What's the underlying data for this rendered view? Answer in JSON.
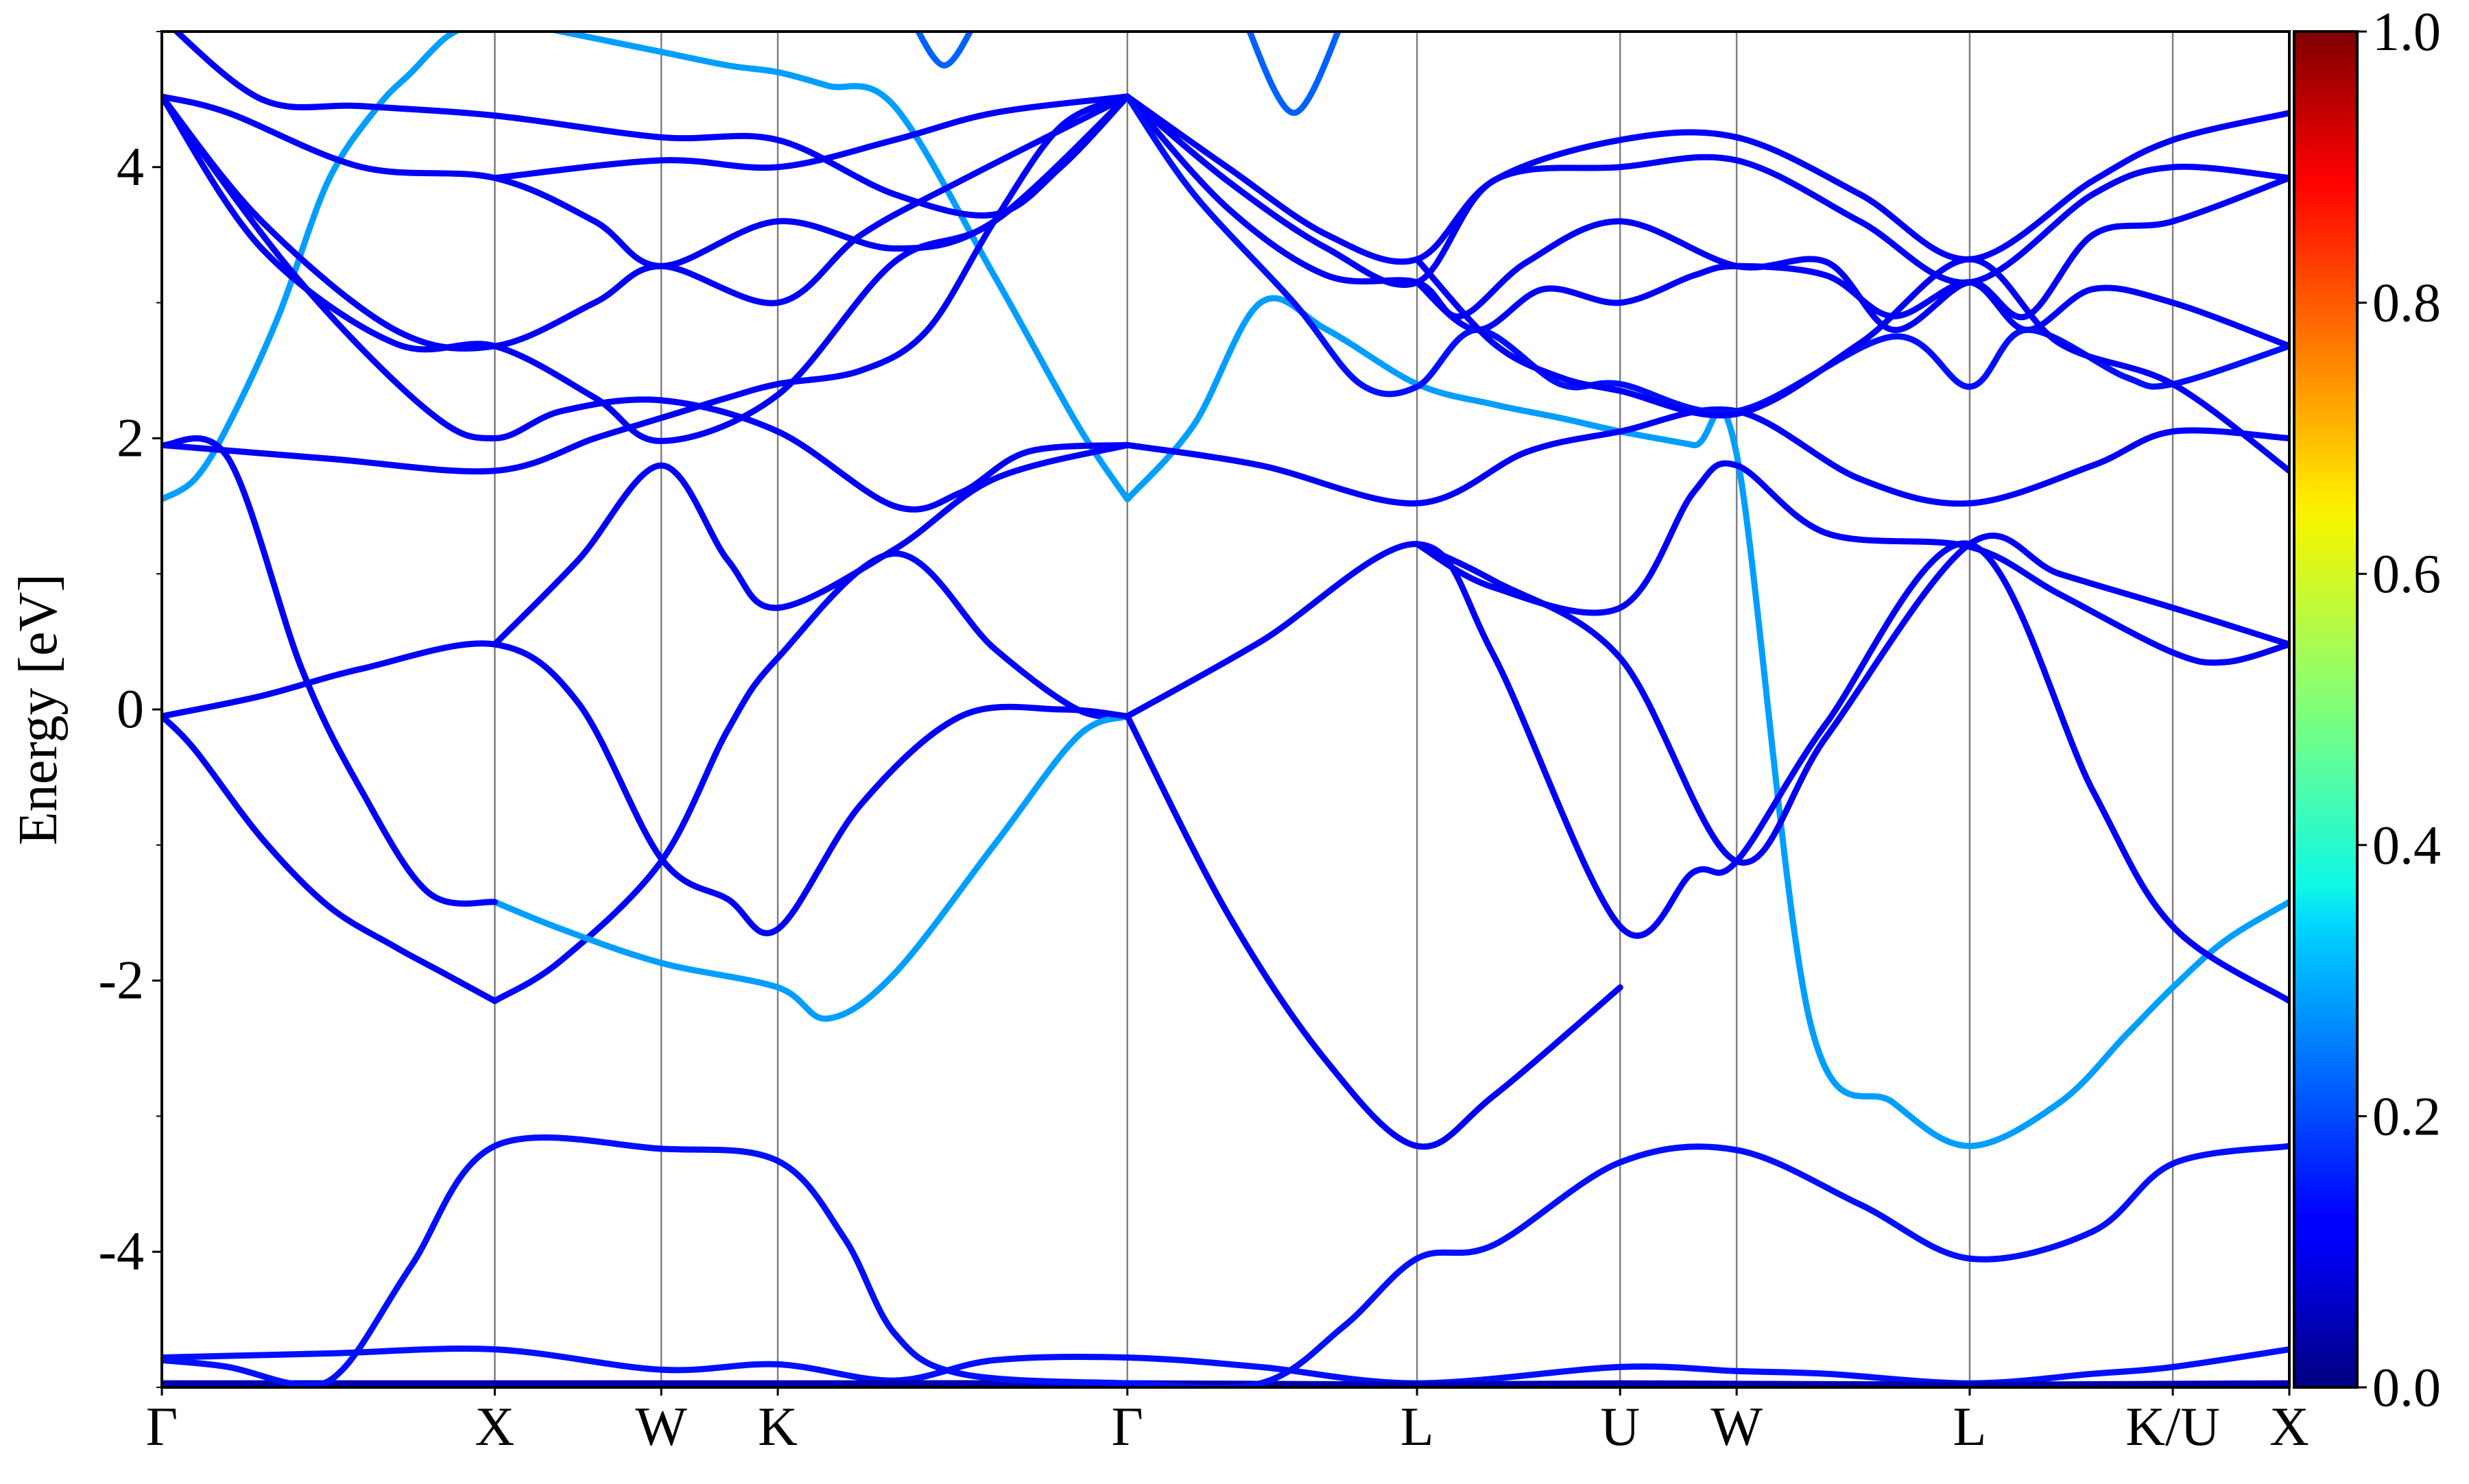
{
  "chart_data": {
    "type": "line",
    "title": "",
    "xlabel": "",
    "ylabel": "Energy [eV]",
    "ylim": [
      -5,
      5
    ],
    "yticks": [
      -4,
      -2,
      0,
      2,
      4
    ],
    "ytick_labels": [
      "-4",
      "-2",
      "0",
      "2",
      "4"
    ],
    "grid": "vertical lines at high-symmetry points",
    "k_points": [
      {
        "label": "Γ",
        "x": 0.0
      },
      {
        "label": "X",
        "x": 1.0
      },
      {
        "label": "W",
        "x": 1.5
      },
      {
        "label": "K",
        "x": 1.85
      },
      {
        "label": "Γ",
        "x": 2.9
      },
      {
        "label": "L",
        "x": 3.77
      },
      {
        "label": "U",
        "x": 4.38
      },
      {
        "label": "W",
        "x": 4.73
      },
      {
        "label": "L",
        "x": 5.43
      },
      {
        "label": "K/U",
        "x": 6.04
      },
      {
        "label": "X",
        "x": 6.39
      }
    ],
    "colorbar": {
      "colormap": "jet",
      "range": [
        0.0,
        1.0
      ],
      "ticks": [
        "0.0",
        "0.2",
        "0.4",
        "0.6",
        "0.8",
        "1.0"
      ]
    },
    "series": [
      {
        "weight": 0.14,
        "x": [
          0,
          0.5,
          1.0,
          1.5,
          1.85,
          2.2,
          2.5,
          2.9,
          3.3,
          3.77,
          4.38,
          4.73,
          5.0,
          5.43,
          5.8,
          6.04,
          6.39
        ],
        "y": [
          -4.78,
          -4.75,
          -4.72,
          -4.87,
          -4.83,
          -4.95,
          -4.8,
          -4.78,
          -4.85,
          -4.97,
          -4.85,
          -4.88,
          -4.9,
          -4.97,
          -4.9,
          -4.85,
          -4.72
        ]
      },
      {
        "weight": 0.05,
        "x": [
          0,
          1.0,
          2.0,
          2.9,
          3.77,
          4.38,
          5.43,
          6.39
        ],
        "y": [
          -4.97,
          -4.97,
          -4.97,
          -4.97,
          -4.98,
          -4.97,
          -4.98,
          -4.97
        ]
      },
      {
        "weight": 0.14,
        "x": [
          0,
          0.2,
          0.42,
          0.55,
          0.75,
          1.0,
          1.5,
          1.85,
          2.05,
          2.2,
          2.4,
          2.9,
          3.3,
          3.55,
          3.77,
          4.0,
          4.38,
          4.73,
          5.1,
          5.43,
          5.8,
          6.04,
          6.39
        ],
        "y": [
          -4.8,
          -4.85,
          -4.98,
          -4.85,
          -4.1,
          -3.22,
          -3.24,
          -3.33,
          -3.9,
          -4.6,
          -4.9,
          -4.97,
          -4.97,
          -4.55,
          -4.05,
          -3.95,
          -3.34,
          -3.25,
          -3.65,
          -4.05,
          -3.85,
          -3.35,
          -3.22
        ]
      },
      {
        "weight": 0.28,
        "x": [
          0,
          0.1,
          0.2,
          0.35,
          0.5,
          0.65,
          0.75,
          0.85,
          0.93,
          1.0,
          1.1,
          1.3,
          1.5,
          1.7,
          1.85,
          2.0,
          2.2,
          2.5,
          2.75,
          2.9
        ],
        "y": [
          1.55,
          1.7,
          2.1,
          2.9,
          3.9,
          4.45,
          4.7,
          4.95,
          5.05,
          5.1,
          5.05,
          4.95,
          4.85,
          4.75,
          4.7,
          4.6,
          4.45,
          3.2,
          2.1,
          1.55
        ]
      },
      {
        "weight": 0.28,
        "x": [
          2.9,
          3.1,
          3.3,
          3.5,
          3.77,
          4.0,
          4.2,
          4.38,
          4.6,
          4.73,
          4.95,
          5.2,
          5.43,
          5.7,
          5.9,
          6.04,
          6.2,
          6.39
        ],
        "y": [
          1.55,
          2.1,
          3.0,
          2.8,
          2.4,
          2.25,
          2.15,
          2.05,
          1.95,
          1.88,
          -2.3,
          -2.9,
          -3.22,
          -2.9,
          -2.4,
          -2.05,
          -1.7,
          -1.42
        ]
      },
      {
        "weight": 0.12,
        "x": [
          0,
          0.1,
          0.3,
          0.5,
          0.7,
          0.85,
          1.0
        ],
        "y": [
          -0.05,
          -0.3,
          -0.95,
          -1.45,
          -1.75,
          -1.95,
          -2.15
        ]
      },
      {
        "weight": 0.13,
        "x": [
          1.0,
          1.2,
          1.5,
          1.7,
          1.85,
          2.2,
          2.5,
          2.75,
          2.9
        ],
        "y": [
          -2.15,
          -1.85,
          -1.12,
          -0.15,
          0.38,
          1.15,
          0.45,
          0.0,
          -0.05
        ]
      },
      {
        "weight": 0.28,
        "x": [
          1.0,
          1.2,
          1.5,
          1.85,
          2.0,
          2.2,
          2.5,
          2.75,
          2.9
        ],
        "y": [
          -1.42,
          -1.62,
          -1.87,
          -2.05,
          -2.28,
          -1.95,
          -1.0,
          -0.2,
          -0.05
        ]
      },
      {
        "weight": 0.12,
        "x": [
          0,
          0.3,
          0.6,
          1.0,
          1.25,
          1.5,
          1.7,
          1.85,
          2.1,
          2.4,
          2.7,
          2.9
        ],
        "y": [
          -0.05,
          0.1,
          0.3,
          0.48,
          0.05,
          -1.1,
          -1.4,
          -1.62,
          -0.7,
          -0.05,
          0.0,
          -0.05
        ]
      },
      {
        "weight": 0.12,
        "x": [
          0,
          0.2,
          0.42,
          0.6,
          0.8,
          1.0
        ],
        "y": [
          1.95,
          1.85,
          0.3,
          -0.6,
          -1.35,
          -1.42
        ]
      },
      {
        "weight": 0.12,
        "x": [
          1.0,
          1.25,
          1.5,
          1.7,
          1.85,
          2.2,
          2.5,
          2.9
        ],
        "y": [
          0.48,
          1.1,
          1.8,
          1.1,
          0.75,
          1.18,
          1.7,
          1.95
        ]
      },
      {
        "weight": 0.12,
        "x": [
          2.9,
          3.3,
          3.77,
          4.0,
          4.38,
          4.6,
          4.73,
          5.0,
          5.43,
          5.8,
          6.04,
          6.39
        ],
        "y": [
          -0.05,
          0.5,
          1.22,
          0.4,
          -1.6,
          -1.2,
          -1.12,
          -0.1,
          1.22,
          -0.6,
          -1.6,
          -2.15
        ]
      },
      {
        "weight": 0.12,
        "x": [
          2.9,
          3.2,
          3.5,
          3.77,
          4.0,
          4.38
        ],
        "y": [
          -0.05,
          -1.5,
          -2.6,
          -3.22,
          -2.85,
          -2.05
        ]
      },
      {
        "weight": 0.12,
        "x": [
          3.77,
          4.0,
          4.38,
          4.6,
          4.73,
          5.0,
          5.43,
          5.7,
          6.04,
          6.2,
          6.39
        ],
        "y": [
          1.22,
          0.9,
          0.75,
          1.6,
          1.8,
          1.3,
          1.2,
          0.85,
          0.42,
          0.35,
          0.48
        ]
      },
      {
        "weight": 0.12,
        "x": [
          3.77,
          4.0,
          4.38,
          4.73,
          5.0,
          5.43,
          5.7,
          6.04,
          6.39
        ],
        "y": [
          1.22,
          0.95,
          0.38,
          -1.12,
          -0.2,
          1.22,
          1.0,
          0.75,
          0.48
        ]
      },
      {
        "weight": 0.12,
        "x": [
          2.9,
          3.3,
          3.77,
          4.1,
          4.38,
          4.73,
          5.1,
          5.43,
          5.8,
          6.04,
          6.39
        ],
        "y": [
          1.95,
          1.8,
          1.52,
          1.9,
          2.05,
          2.2,
          1.7,
          1.52,
          1.8,
          2.05,
          2.0
        ]
      },
      {
        "weight": 0.12,
        "x": [
          0,
          0.5,
          1.0,
          1.3,
          1.5,
          1.7,
          1.85,
          2.1,
          2.3,
          2.5,
          2.7,
          2.9
        ],
        "y": [
          1.95,
          1.85,
          1.76,
          2.0,
          2.15,
          2.3,
          2.4,
          2.5,
          2.8,
          3.6,
          4.3,
          4.52
        ]
      },
      {
        "weight": 0.12,
        "x": [
          0,
          0.4,
          0.8,
          1.0,
          1.2,
          1.5,
          1.85,
          2.2,
          2.4,
          2.6,
          2.9
        ],
        "y": [
          4.52,
          3.2,
          2.2,
          2.0,
          2.2,
          2.28,
          2.05,
          1.5,
          1.6,
          1.9,
          1.95
        ]
      },
      {
        "weight": 0.12,
        "x": [
          0,
          0.3,
          0.7,
          1.0,
          1.3,
          1.5,
          1.85,
          2.2,
          2.5,
          2.9
        ],
        "y": [
          4.52,
          3.4,
          2.7,
          2.68,
          2.3,
          1.98,
          2.32,
          3.3,
          3.6,
          4.52
        ]
      },
      {
        "weight": 0.12,
        "x": [
          0,
          0.3,
          0.7,
          1.0,
          1.3,
          1.5,
          1.85,
          2.1,
          2.4,
          2.9
        ],
        "y": [
          4.52,
          3.6,
          2.8,
          2.68,
          3.0,
          3.27,
          3.0,
          3.5,
          3.9,
          4.52
        ]
      },
      {
        "weight": 0.12,
        "x": [
          0,
          0.2,
          0.6,
          1.0,
          1.3,
          1.5,
          1.85,
          2.2,
          2.5,
          2.9
        ],
        "y": [
          4.52,
          4.4,
          4.0,
          3.92,
          3.6,
          3.27,
          3.6,
          3.4,
          3.6,
          4.52
        ]
      },
      {
        "weight": 0.12,
        "x": [
          0,
          0.3,
          0.6,
          1.0,
          1.5,
          1.85,
          2.2,
          2.5,
          2.7,
          2.9
        ],
        "y": [
          5.1,
          4.5,
          4.45,
          4.38,
          4.22,
          4.2,
          3.8,
          3.65,
          4.0,
          4.52
        ]
      },
      {
        "weight": 0.12,
        "x": [
          1.0,
          1.5,
          1.85,
          2.2,
          2.5,
          2.9
        ],
        "y": [
          3.92,
          4.05,
          4.0,
          4.2,
          4.4,
          4.52
        ]
      },
      {
        "weight": 0.12,
        "x": [
          2.9,
          3.2,
          3.5,
          3.77,
          4.0,
          4.38,
          4.73,
          5.1,
          5.43,
          5.8,
          6.04,
          6.39
        ],
        "y": [
          4.52,
          4.0,
          3.5,
          3.32,
          3.9,
          4.2,
          4.22,
          3.8,
          3.32,
          3.9,
          4.2,
          4.4
        ]
      },
      {
        "weight": 0.12,
        "x": [
          2.9,
          3.2,
          3.5,
          3.77,
          4.0,
          4.38,
          4.73,
          5.1,
          5.43,
          5.8,
          6.04,
          6.39
        ],
        "y": [
          4.52,
          3.9,
          3.4,
          3.15,
          3.9,
          4.0,
          4.05,
          3.6,
          3.15,
          3.8,
          4.0,
          3.92
        ]
      },
      {
        "weight": 0.12,
        "x": [
          2.9,
          3.2,
          3.5,
          3.77,
          3.9,
          4.1,
          4.38,
          4.73,
          5.0,
          5.2,
          5.43,
          5.6,
          5.8,
          6.04,
          6.39
        ],
        "y": [
          4.52,
          3.7,
          3.2,
          3.15,
          2.9,
          3.3,
          3.6,
          3.27,
          3.3,
          2.8,
          3.15,
          2.9,
          3.5,
          3.6,
          3.92
        ]
      },
      {
        "weight": 0.12,
        "x": [
          3.77,
          3.95,
          4.15,
          4.38,
          4.6,
          4.73,
          5.0,
          5.2,
          5.43,
          5.6,
          5.8,
          6.04,
          6.39
        ],
        "y": [
          3.15,
          2.8,
          3.1,
          3.0,
          3.2,
          3.27,
          3.2,
          2.9,
          3.15,
          2.8,
          3.1,
          3.0,
          2.68
        ]
      },
      {
        "weight": 0.14,
        "x": [
          2.9,
          3.1,
          3.4,
          3.6,
          3.77,
          3.95,
          4.2,
          4.38,
          4.73,
          5.2,
          5.43,
          5.6,
          5.9,
          6.04,
          6.39
        ],
        "y": [
          4.52,
          3.8,
          3.0,
          2.4,
          2.38,
          2.8,
          2.4,
          2.4,
          2.2,
          2.75,
          2.38,
          2.8,
          2.45,
          2.4,
          2.68
        ]
      },
      {
        "weight": 0.12,
        "x": [
          3.77,
          4.0,
          4.2,
          4.38,
          4.73,
          5.1,
          5.43,
          5.7,
          6.04,
          6.39
        ],
        "y": [
          3.32,
          2.7,
          2.45,
          2.35,
          2.18,
          2.7,
          3.32,
          2.7,
          2.4,
          1.76
        ]
      },
      {
        "weight": 0.22,
        "x": [
          2.25,
          2.35,
          2.45
        ],
        "y": [
          5.1,
          4.75,
          5.1
        ]
      },
      {
        "weight": 0.22,
        "x": [
          3.25,
          3.4,
          3.55
        ],
        "y": [
          5.1,
          4.4,
          5.1
        ]
      }
    ]
  }
}
